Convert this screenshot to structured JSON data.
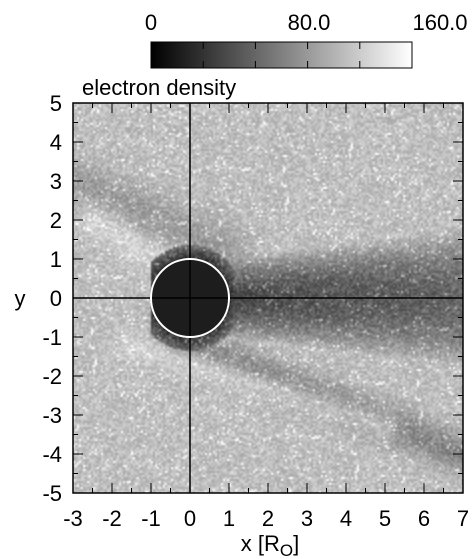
{
  "chart_data": {
    "type": "heatmap",
    "title": "electron density",
    "colorbar": {
      "min": 0,
      "max": 160,
      "tick_labels": [
        "0",
        "80.0",
        "160.0"
      ],
      "tick_values": [
        0,
        80,
        160
      ],
      "colormap": [
        "#000000",
        "#ffffff"
      ]
    },
    "xlabel_base": "x [R",
    "xlabel_sub": "O",
    "xlabel_close": "]",
    "ylabel": "y",
    "xlim": [
      -3,
      7
    ],
    "ylim": [
      -5,
      5
    ],
    "x_ticks": [
      "-3",
      "-2",
      "-1",
      "0",
      "1",
      "2",
      "3",
      "4",
      "5",
      "6",
      "7"
    ],
    "y_ticks": [
      "5",
      "4",
      "3",
      "2",
      "1",
      "0",
      "-1",
      "-2",
      "-3",
      "-4",
      "-5"
    ],
    "body": {
      "center": [
        0,
        0
      ],
      "radius": 1
    },
    "axes_lines": {
      "x": 0,
      "y": 0
    },
    "grid": false,
    "features": [
      {
        "name": "background",
        "value": 120
      },
      {
        "name": "wake",
        "value": 40,
        "x_range": [
          0,
          7
        ],
        "center_y": 0,
        "half_width_start": 0.9,
        "half_width_end": 1.8
      },
      {
        "name": "lower-wake-band",
        "value": 75,
        "from": [
          -0.5,
          -1.0
        ],
        "to": [
          7,
          -4.0
        ]
      },
      {
        "name": "upper-wake-band",
        "value": 80,
        "from": [
          -3,
          3.0
        ],
        "to": [
          1,
          1.2
        ]
      },
      {
        "name": "bright-rim-upper",
        "value": 150,
        "from": [
          -2.5,
          2.0
        ],
        "to": [
          -0.6,
          0.8
        ]
      },
      {
        "name": "bright-rim-lower",
        "value": 150,
        "from": [
          -1.5,
          -1.2
        ],
        "to": [
          5,
          -3.3
        ]
      }
    ]
  }
}
